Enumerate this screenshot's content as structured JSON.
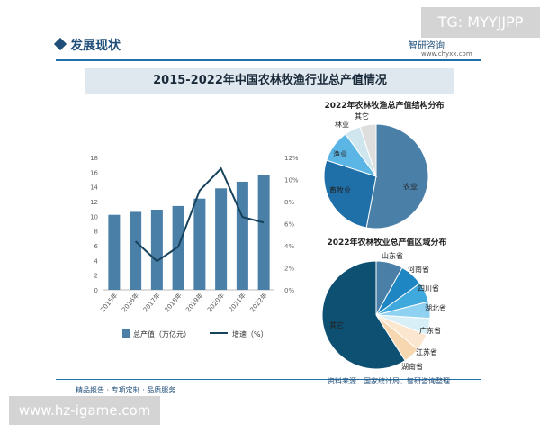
{
  "overlay_tag": "TG: MYYJJPP",
  "section_title": "发展现状",
  "brand": {
    "name": "智研咨询",
    "url": "www.chyxx.com"
  },
  "footer_left": "精品报告 · 专项定制 · 品质服务",
  "footer_right": "资料来源：国家统计局、智研咨询整理",
  "bottom_url": "www.hz-igame.com",
  "colors": {
    "bar": "#4a7fa7",
    "line": "#16425b",
    "accent": "#1f4e79"
  },
  "chart_data": [
    {
      "type": "bar",
      "title": "2015-2022年中国农林牧渔行业总产值情况",
      "categories": [
        "2015年",
        "2016年",
        "2017年",
        "2018年",
        "2019年",
        "2020年",
        "2021年",
        "2022年"
      ],
      "series": [
        {
          "name": "总产值（万亿元）",
          "type": "bar",
          "axis": "left",
          "values": [
            10.2,
            10.6,
            10.9,
            11.4,
            12.4,
            13.8,
            14.7,
            15.6
          ]
        },
        {
          "name": "增速（%）",
          "type": "line",
          "axis": "right",
          "values": [
            null,
            4.4,
            2.6,
            3.9,
            9.0,
            11.0,
            6.6,
            6.1
          ]
        }
      ],
      "yticks_left": [
        "0",
        "2",
        "4",
        "6",
        "8",
        "10",
        "12",
        "14",
        "16",
        "18"
      ],
      "yticks_right": [
        "0%",
        "2%",
        "4%",
        "6%",
        "8%",
        "10%",
        "12%"
      ],
      "ylim_left": [
        0,
        18
      ],
      "ylim_right": [
        0,
        12
      ],
      "legend_position": "bottom"
    },
    {
      "type": "pie",
      "title": "2022年农林牧渔总产值结构分布",
      "labels": [
        "农业",
        "畜牧业",
        "渔业",
        "林业",
        "其它"
      ],
      "values": [
        53,
        27,
        10,
        5,
        5
      ],
      "colors": [
        "#4a7fa7",
        "#1f6fa8",
        "#5bb6e6",
        "#cfe6ee",
        "#dedede"
      ]
    },
    {
      "type": "pie",
      "title": "2022年农林牧业总产值区域分布",
      "labels": [
        "山东省",
        "河南省",
        "四川省",
        "湖北省",
        "广东省",
        "江苏省",
        "湖南省",
        "其它"
      ],
      "values": [
        8,
        7,
        6,
        5,
        5,
        5,
        5,
        59
      ],
      "colors": [
        "#4a7fa7",
        "#1f86c4",
        "#3fa9de",
        "#8ed1f0",
        "#d9eff8",
        "#fbe6cf",
        "#f7d7b0",
        "#0e5072"
      ]
    }
  ]
}
